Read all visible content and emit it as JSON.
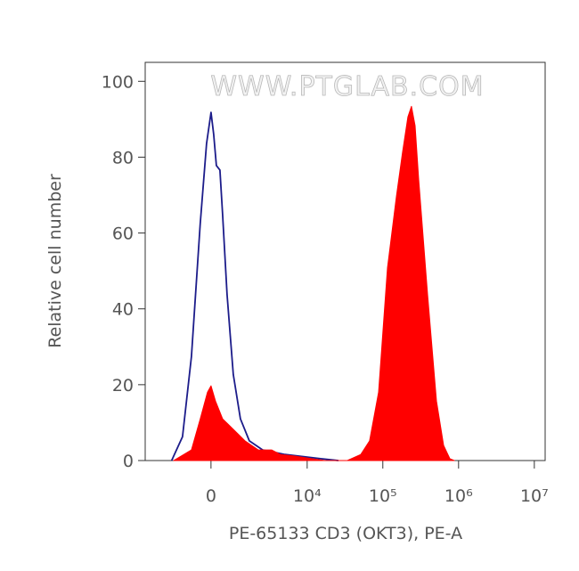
{
  "chart_data": {
    "type": "area",
    "watermark": "WWW.PTGLAB.COM",
    "xlabel": "PE-65133 CD3 (OKT3), PE-A",
    "ylabel": "Relative cell number",
    "xscale": "biexponential",
    "xlim": [
      -3910,
      13900000
    ],
    "xticks": [
      0,
      {
        "value": 10000,
        "label": "10⁴"
      },
      {
        "value": 100000,
        "label": "10⁵"
      },
      {
        "value": 1000000,
        "label": "10⁶"
      },
      {
        "value": 10000000,
        "label": "10⁷"
      }
    ],
    "ylim": [
      0,
      105
    ],
    "yticks": [
      0,
      20,
      40,
      60,
      80,
      100
    ],
    "series": [
      {
        "color": "#1c1c8a",
        "fill": false,
        "x": [
          -1619,
          -1055,
          -681,
          -357,
          -146,
          0,
          88,
          176,
          296,
          387,
          547,
          787,
          1098,
          1562,
          2479,
          5045,
          15070,
          25940
        ],
        "values": [
          0,
          6.3,
          27.4,
          62.5,
          83.6,
          91.8,
          86,
          77.8,
          76.6,
          64.9,
          43.8,
          22.7,
          11.0,
          5.2,
          2.8,
          1.6,
          0.5,
          0
        ]
      },
      {
        "color": "#ff0000",
        "fill": true,
        "x": [
          -1507,
          -681,
          -357,
          -117,
          0,
          146,
          387,
          716,
          1321,
          2138,
          3316,
          4397,
          6650,
          11490,
          17280,
          34010,
          51100,
          66940,
          87860,
          115100,
          150900,
          182300,
          214500,
          239000,
          266500,
          297000,
          389500,
          510800,
          633900,
          766400,
          877500
        ],
        "values": [
          0,
          2.8,
          11,
          18,
          19.7,
          15.7,
          11,
          8.7,
          5.2,
          2.8,
          2.8,
          1.6,
          1.2,
          0.5,
          0,
          0,
          1.6,
          5.2,
          18,
          50.8,
          69.6,
          81.3,
          90.6,
          93.4,
          88.3,
          74.2,
          43.8,
          15.7,
          4,
          0.5,
          0
        ]
      }
    ]
  }
}
